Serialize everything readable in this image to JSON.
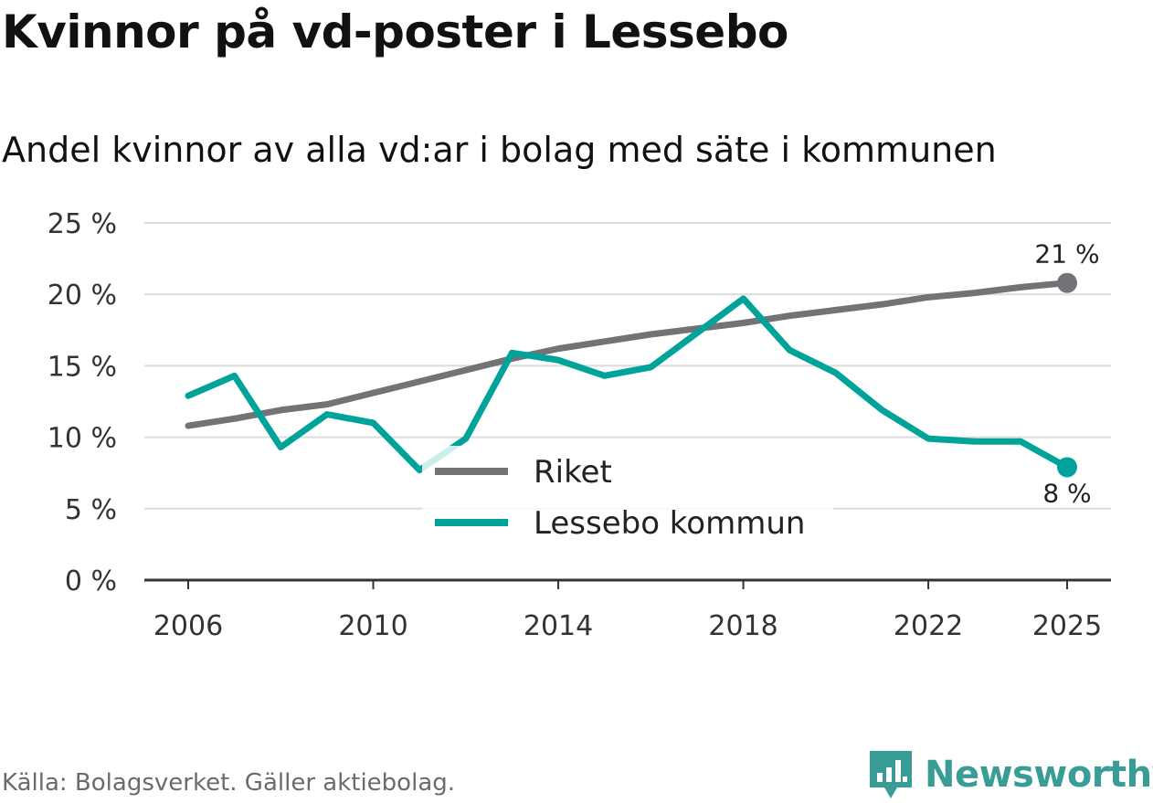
{
  "title": "Kvinnor på vd-poster i Lessebo",
  "subtitle": "Andel kvinnor av alla vd:ar i bolag med säte i kommunen",
  "source": "Källa: Bolagsverket. Gäller aktiebolag.",
  "brand": "Newsworthy",
  "colors": {
    "riket": "#727277",
    "lessebo": "#00a39a",
    "grid": "#dcdcdc",
    "axis": "#333333",
    "brand": "#3a9c96"
  },
  "chart_data": {
    "type": "line",
    "title": "Kvinnor på vd-poster i Lessebo",
    "xlabel": "",
    "ylabel": "",
    "xlim": [
      2006,
      2025
    ],
    "ylim": [
      0,
      25
    ],
    "yticks": [
      0,
      5,
      10,
      15,
      20,
      25
    ],
    "ytick_labels": [
      "0 %",
      "5 %",
      "10 %",
      "15 %",
      "20 %",
      "25 %"
    ],
    "xticks": [
      2006,
      2010,
      2014,
      2018,
      2022,
      2025
    ],
    "xtick_labels": [
      "2006",
      "2010",
      "2014",
      "2018",
      "2022",
      "2025"
    ],
    "grid": true,
    "legend_position": "center",
    "series": [
      {
        "name": "Riket",
        "x": [
          2006,
          2007,
          2008,
          2009,
          2010,
          2011,
          2012,
          2013,
          2014,
          2015,
          2016,
          2017,
          2018,
          2019,
          2020,
          2021,
          2022,
          2023,
          2024,
          2025
        ],
        "values": [
          10.8,
          11.3,
          11.9,
          12.3,
          13.1,
          13.9,
          14.7,
          15.5,
          16.2,
          16.7,
          17.2,
          17.6,
          18.0,
          18.5,
          18.9,
          19.3,
          19.8,
          20.1,
          20.5,
          20.8
        ],
        "end_label": "21 %"
      },
      {
        "name": "Lessebo kommun",
        "x": [
          2006,
          2007,
          2008,
          2009,
          2010,
          2011,
          2012,
          2013,
          2014,
          2015,
          2016,
          2017,
          2018,
          2019,
          2020,
          2021,
          2022,
          2023,
          2024,
          2025
        ],
        "values": [
          12.9,
          14.3,
          9.3,
          11.6,
          11.0,
          7.7,
          9.9,
          15.9,
          15.4,
          14.3,
          14.9,
          17.3,
          19.7,
          16.1,
          14.5,
          11.9,
          9.9,
          9.7,
          9.7,
          7.9
        ],
        "end_label": "8 %"
      }
    ]
  }
}
